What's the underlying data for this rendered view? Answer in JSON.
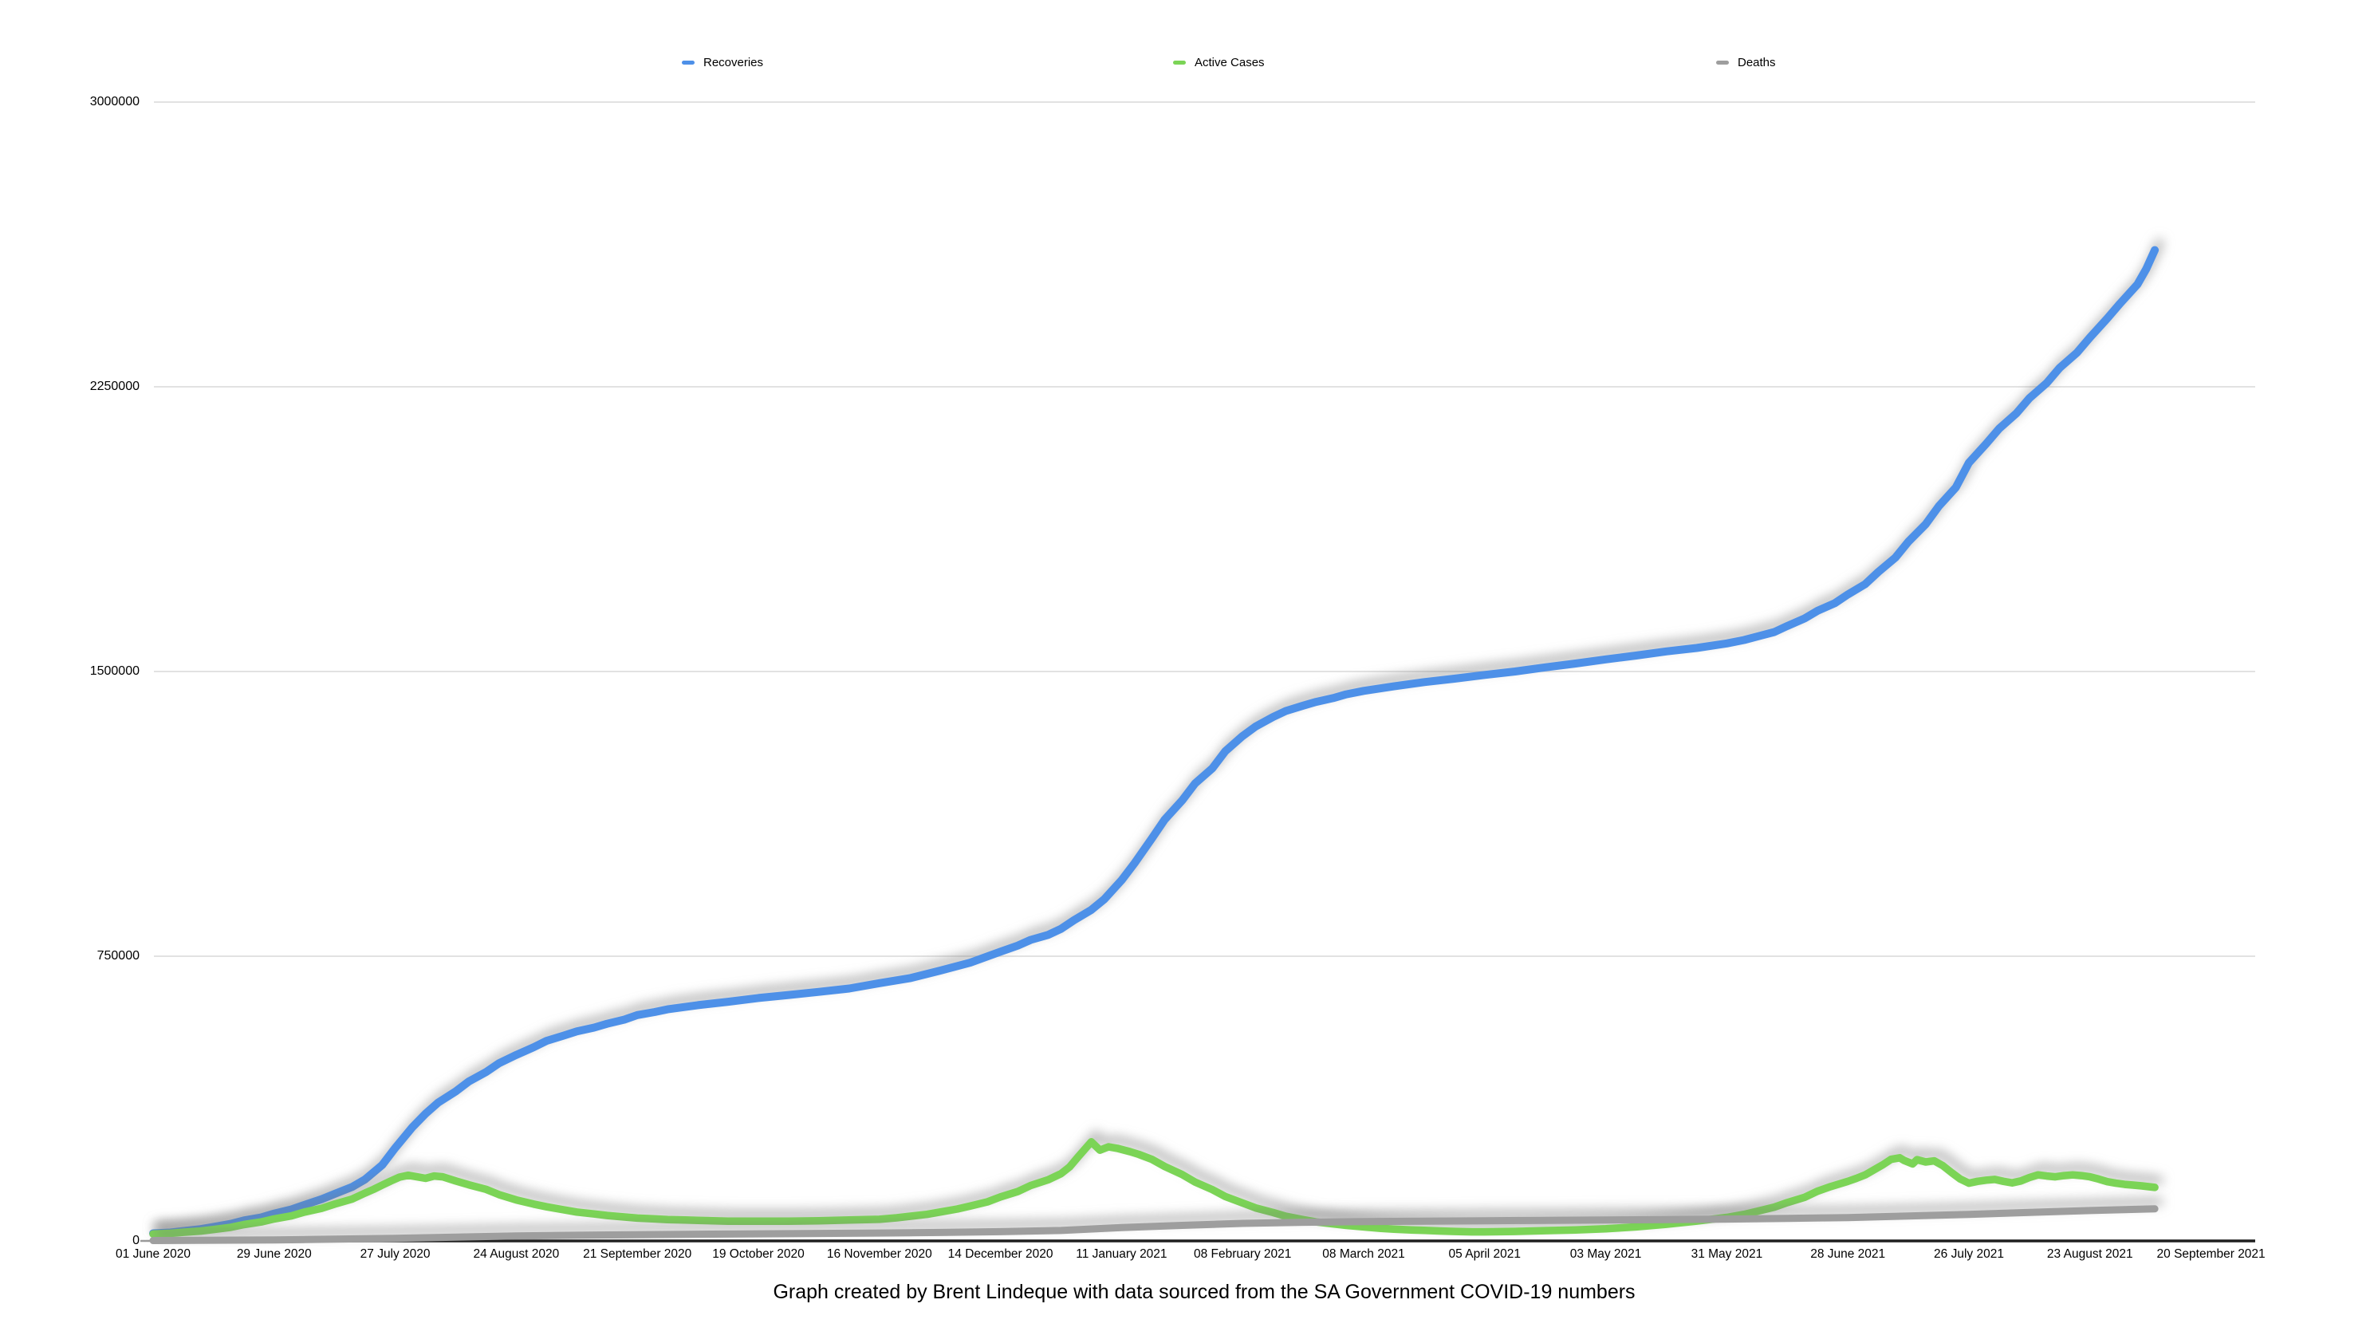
{
  "caption": "Graph created by Brent Lindeque with data sourced from the SA Government COVID-19 numbers",
  "chart_data": {
    "type": "line",
    "title": "",
    "legend_position": "top",
    "grid": "horizontal",
    "colors": {
      "gridline": "#d9d9d9",
      "axis_line": "#1f1f1f",
      "shadow": "rgba(120,120,120,0.6)"
    },
    "x_axis": {
      "start": "01 June 2020",
      "end": "20 September 2021",
      "interval_days": 28,
      "tick_labels": [
        "01 June 2020",
        "29 June 2020",
        "27 July 2020",
        "24 August 2020",
        "21 September 2020",
        "19 October 2020",
        "16 November 2020",
        "14 December 2020",
        "11 January 2021",
        "08 February 2021",
        "08 March 2021",
        "05 April 2021",
        "03 May 2021",
        "31 May 2021",
        "28 June 2021",
        "26 July 2021",
        "23 August 2021",
        "20 September 2021"
      ]
    },
    "y_axis": {
      "min": 0,
      "max": 3000000,
      "ticks": [
        0,
        750000,
        1500000,
        2250000,
        3000000
      ],
      "tick_labels": [
        "0",
        "750000",
        "1500000",
        "2250000",
        "3000000"
      ]
    },
    "series": [
      {
        "name": "Recoveries",
        "color": "#4d90e8",
        "points": [
          [
            0,
            20000
          ],
          [
            4,
            22000
          ],
          [
            7,
            26000
          ],
          [
            11,
            31000
          ],
          [
            14,
            37000
          ],
          [
            18,
            45000
          ],
          [
            21,
            54000
          ],
          [
            25,
            62000
          ],
          [
            28,
            72000
          ],
          [
            32,
            83000
          ],
          [
            35,
            95000
          ],
          [
            39,
            110000
          ],
          [
            42,
            124000
          ],
          [
            46,
            142000
          ],
          [
            49,
            162000
          ],
          [
            53,
            200000
          ],
          [
            56,
            245000
          ],
          [
            60,
            300000
          ],
          [
            63,
            335000
          ],
          [
            66,
            365000
          ],
          [
            70,
            394000
          ],
          [
            73,
            420000
          ],
          [
            77,
            445000
          ],
          [
            80,
            468000
          ],
          [
            84,
            490000
          ],
          [
            88,
            510000
          ],
          [
            91,
            527000
          ],
          [
            95,
            541000
          ],
          [
            98,
            552000
          ],
          [
            102,
            562000
          ],
          [
            105,
            572000
          ],
          [
            109,
            583000
          ],
          [
            112,
            595000
          ],
          [
            116,
            603000
          ],
          [
            119,
            610000
          ],
          [
            126,
            621000
          ],
          [
            133,
            630000
          ],
          [
            140,
            640000
          ],
          [
            147,
            648000
          ],
          [
            154,
            656000
          ],
          [
            161,
            665000
          ],
          [
            168,
            679000
          ],
          [
            175,
            692000
          ],
          [
            182,
            712000
          ],
          [
            189,
            733000
          ],
          [
            196,
            762000
          ],
          [
            200,
            778000
          ],
          [
            203,
            793000
          ],
          [
            207,
            806000
          ],
          [
            210,
            822000
          ],
          [
            213,
            845000
          ],
          [
            217,
            872000
          ],
          [
            220,
            900000
          ],
          [
            224,
            950000
          ],
          [
            227,
            995000
          ],
          [
            231,
            1060000
          ],
          [
            234,
            1110000
          ],
          [
            238,
            1160000
          ],
          [
            241,
            1205000
          ],
          [
            245,
            1245000
          ],
          [
            248,
            1290000
          ],
          [
            252,
            1330000
          ],
          [
            255,
            1355000
          ],
          [
            259,
            1380000
          ],
          [
            262,
            1396000
          ],
          [
            266,
            1410000
          ],
          [
            269,
            1420000
          ],
          [
            273,
            1430000
          ],
          [
            276,
            1440000
          ],
          [
            280,
            1449000
          ],
          [
            287,
            1461000
          ],
          [
            294,
            1472000
          ],
          [
            301,
            1481000
          ],
          [
            308,
            1491000
          ],
          [
            315,
            1500000
          ],
          [
            322,
            1511000
          ],
          [
            329,
            1521000
          ],
          [
            336,
            1532000
          ],
          [
            343,
            1542000
          ],
          [
            350,
            1553000
          ],
          [
            357,
            1562000
          ],
          [
            364,
            1574000
          ],
          [
            368,
            1583000
          ],
          [
            371,
            1592000
          ],
          [
            375,
            1604000
          ],
          [
            378,
            1620000
          ],
          [
            382,
            1640000
          ],
          [
            385,
            1660000
          ],
          [
            389,
            1680000
          ],
          [
            392,
            1703000
          ],
          [
            396,
            1730000
          ],
          [
            399,
            1762000
          ],
          [
            403,
            1800000
          ],
          [
            406,
            1842000
          ],
          [
            410,
            1888000
          ],
          [
            413,
            1935000
          ],
          [
            417,
            1985000
          ],
          [
            420,
            2050000
          ],
          [
            424,
            2100000
          ],
          [
            427,
            2140000
          ],
          [
            431,
            2180000
          ],
          [
            434,
            2220000
          ],
          [
            438,
            2260000
          ],
          [
            441,
            2300000
          ],
          [
            445,
            2340000
          ],
          [
            448,
            2380000
          ],
          [
            452,
            2430000
          ],
          [
            455,
            2470000
          ],
          [
            459,
            2520000
          ],
          [
            461,
            2560000
          ],
          [
            463,
            2610000
          ]
        ]
      },
      {
        "name": "Active Cases",
        "color": "#7bd456",
        "points": [
          [
            0,
            18000
          ],
          [
            4,
            20000
          ],
          [
            7,
            23000
          ],
          [
            11,
            26000
          ],
          [
            14,
            30000
          ],
          [
            18,
            36000
          ],
          [
            21,
            43000
          ],
          [
            25,
            50000
          ],
          [
            28,
            58000
          ],
          [
            32,
            66000
          ],
          [
            35,
            76000
          ],
          [
            39,
            86000
          ],
          [
            42,
            97000
          ],
          [
            46,
            110000
          ],
          [
            49,
            126000
          ],
          [
            51,
            136000
          ],
          [
            53,
            147000
          ],
          [
            55,
            158000
          ],
          [
            57,
            168000
          ],
          [
            59,
            173000
          ],
          [
            61,
            169000
          ],
          [
            63,
            165000
          ],
          [
            65,
            171000
          ],
          [
            67,
            169000
          ],
          [
            70,
            158000
          ],
          [
            73,
            148000
          ],
          [
            77,
            136000
          ],
          [
            80,
            122000
          ],
          [
            84,
            108000
          ],
          [
            88,
            97000
          ],
          [
            91,
            90000
          ],
          [
            95,
            82000
          ],
          [
            98,
            76000
          ],
          [
            102,
            71000
          ],
          [
            105,
            67000
          ],
          [
            109,
            63000
          ],
          [
            112,
            60000
          ],
          [
            116,
            58000
          ],
          [
            119,
            56000
          ],
          [
            123,
            55000
          ],
          [
            126,
            54000
          ],
          [
            133,
            52000
          ],
          [
            140,
            52000
          ],
          [
            147,
            52000
          ],
          [
            154,
            53000
          ],
          [
            161,
            55000
          ],
          [
            168,
            57000
          ],
          [
            172,
            61000
          ],
          [
            175,
            65000
          ],
          [
            179,
            70000
          ],
          [
            182,
            76000
          ],
          [
            186,
            84000
          ],
          [
            189,
            92000
          ],
          [
            193,
            103000
          ],
          [
            196,
            116000
          ],
          [
            200,
            130000
          ],
          [
            203,
            146000
          ],
          [
            207,
            161000
          ],
          [
            210,
            177000
          ],
          [
            212,
            195000
          ],
          [
            214,
            222000
          ],
          [
            216,
            248000
          ],
          [
            217,
            261000
          ],
          [
            219,
            239000
          ],
          [
            221,
            248000
          ],
          [
            223,
            244000
          ],
          [
            226,
            235000
          ],
          [
            228,
            228000
          ],
          [
            231,
            215000
          ],
          [
            234,
            196000
          ],
          [
            238,
            175000
          ],
          [
            241,
            155000
          ],
          [
            245,
            135000
          ],
          [
            248,
            117000
          ],
          [
            252,
            100000
          ],
          [
            255,
            87000
          ],
          [
            259,
            75000
          ],
          [
            262,
            65000
          ],
          [
            266,
            56000
          ],
          [
            269,
            50000
          ],
          [
            273,
            45000
          ],
          [
            276,
            41000
          ],
          [
            280,
            37000
          ],
          [
            284,
            33000
          ],
          [
            287,
            31000
          ],
          [
            291,
            29000
          ],
          [
            294,
            28000
          ],
          [
            298,
            26000
          ],
          [
            301,
            25000
          ],
          [
            305,
            24000
          ],
          [
            308,
            24000
          ],
          [
            315,
            25000
          ],
          [
            322,
            27000
          ],
          [
            329,
            29000
          ],
          [
            336,
            32000
          ],
          [
            343,
            37000
          ],
          [
            350,
            44000
          ],
          [
            357,
            52000
          ],
          [
            364,
            62000
          ],
          [
            368,
            70000
          ],
          [
            371,
            78000
          ],
          [
            375,
            89000
          ],
          [
            378,
            101000
          ],
          [
            382,
            115000
          ],
          [
            385,
            131000
          ],
          [
            388,
            143000
          ],
          [
            392,
            157000
          ],
          [
            394,
            165000
          ],
          [
            396,
            174000
          ],
          [
            398,
            187000
          ],
          [
            400,
            200000
          ],
          [
            402,
            215000
          ],
          [
            404,
            219000
          ],
          [
            405,
            212000
          ],
          [
            407,
            203000
          ],
          [
            408,
            214000
          ],
          [
            410,
            208000
          ],
          [
            412,
            211000
          ],
          [
            414,
            198000
          ],
          [
            416,
            180000
          ],
          [
            418,
            163000
          ],
          [
            420,
            152000
          ],
          [
            422,
            157000
          ],
          [
            424,
            160000
          ],
          [
            426,
            162000
          ],
          [
            428,
            157000
          ],
          [
            430,
            153000
          ],
          [
            432,
            158000
          ],
          [
            434,
            167000
          ],
          [
            436,
            174000
          ],
          [
            438,
            171000
          ],
          [
            440,
            169000
          ],
          [
            442,
            172000
          ],
          [
            444,
            174000
          ],
          [
            446,
            172000
          ],
          [
            448,
            169000
          ],
          [
            450,
            163000
          ],
          [
            452,
            156000
          ],
          [
            454,
            152000
          ],
          [
            456,
            149000
          ],
          [
            458,
            147000
          ],
          [
            460,
            145000
          ],
          [
            463,
            141000
          ]
        ]
      },
      {
        "name": "Deaths",
        "color": "#9e9e9e",
        "points": [
          [
            0,
            1000
          ],
          [
            14,
            1800
          ],
          [
            28,
            2800
          ],
          [
            42,
            4700
          ],
          [
            56,
            7000
          ],
          [
            70,
            9900
          ],
          [
            84,
            13000
          ],
          [
            98,
            15000
          ],
          [
            112,
            16400
          ],
          [
            126,
            17600
          ],
          [
            140,
            18700
          ],
          [
            154,
            19800
          ],
          [
            168,
            20800
          ],
          [
            182,
            22200
          ],
          [
            196,
            24300
          ],
          [
            210,
            27500
          ],
          [
            224,
            35000
          ],
          [
            238,
            41000
          ],
          [
            252,
            46200
          ],
          [
            266,
            49200
          ],
          [
            280,
            50900
          ],
          [
            294,
            52200
          ],
          [
            308,
            53200
          ],
          [
            322,
            54200
          ],
          [
            336,
            55200
          ],
          [
            350,
            56200
          ],
          [
            364,
            57600
          ],
          [
            378,
            59300
          ],
          [
            392,
            61500
          ],
          [
            406,
            65500
          ],
          [
            420,
            70000
          ],
          [
            434,
            75000
          ],
          [
            448,
            80000
          ],
          [
            463,
            84500
          ]
        ]
      }
    ]
  }
}
